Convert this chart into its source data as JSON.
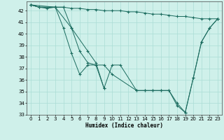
{
  "xlabel": "Humidex (Indice chaleur)",
  "bg_color": "#cff0ea",
  "line_color": "#1a6b5e",
  "grid_color": "#aaddd5",
  "xlim": [
    -0.5,
    23.5
  ],
  "ylim": [
    33,
    42.8
  ],
  "yticks": [
    33,
    34,
    35,
    36,
    37,
    38,
    39,
    40,
    41,
    42
  ],
  "xticks": [
    0,
    1,
    2,
    3,
    4,
    5,
    6,
    7,
    8,
    9,
    10,
    11,
    12,
    13,
    14,
    15,
    16,
    17,
    18,
    19,
    20,
    21,
    22,
    23
  ],
  "series": [
    {
      "x": [
        0,
        1,
        2,
        3,
        4,
        5,
        6,
        7,
        8,
        9,
        10,
        11,
        12,
        13,
        14,
        15,
        16,
        17,
        18,
        19,
        20,
        21,
        22,
        23
      ],
      "y": [
        42.5,
        42.3,
        42.2,
        42.3,
        42.3,
        42.2,
        42.2,
        42.1,
        42.1,
        42.0,
        42.0,
        42.0,
        41.9,
        41.9,
        41.8,
        41.7,
        41.7,
        41.6,
        41.5,
        41.5,
        41.4,
        41.3,
        41.3,
        41.3
      ]
    },
    {
      "x": [
        0,
        1,
        3,
        5,
        6,
        7,
        8,
        9,
        10,
        11,
        13,
        14,
        15,
        16,
        17,
        18,
        19,
        20,
        21,
        22,
        23
      ],
      "y": [
        42.5,
        42.3,
        42.3,
        40.5,
        38.5,
        37.5,
        37.3,
        35.3,
        37.3,
        37.3,
        35.1,
        35.1,
        35.1,
        35.1,
        35.1,
        33.8,
        33.2,
        36.2,
        39.3,
        40.5,
        41.3
      ]
    },
    {
      "x": [
        0,
        3,
        4,
        5,
        6,
        7,
        8,
        9,
        10,
        13,
        14,
        15,
        16,
        17,
        18,
        19,
        20,
        21,
        22,
        23
      ],
      "y": [
        42.5,
        42.3,
        40.5,
        38.3,
        36.5,
        37.3,
        37.3,
        37.3,
        36.5,
        35.1,
        35.1,
        35.1,
        35.1,
        35.1,
        34.0,
        33.2,
        36.2,
        39.3,
        40.5,
        41.3
      ]
    },
    {
      "x": [
        0,
        1,
        3,
        4,
        5,
        7,
        8,
        9
      ],
      "y": [
        42.5,
        42.3,
        42.3,
        42.3,
        40.5,
        38.5,
        37.5,
        35.3
      ]
    }
  ]
}
